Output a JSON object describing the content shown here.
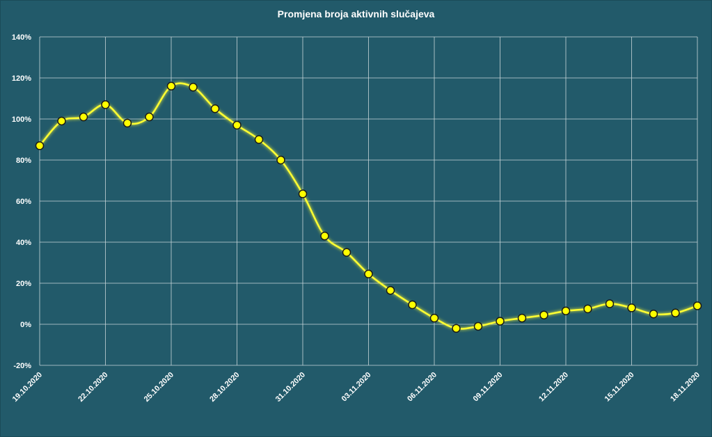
{
  "chart_data": {
    "type": "line",
    "title": "Promjena broja aktivnih slučajeva",
    "xlabel": "",
    "ylabel": "",
    "ylim": [
      -20,
      140
    ],
    "y_tick_values": [
      -20,
      0,
      20,
      40,
      60,
      80,
      100,
      120,
      140
    ],
    "y_tick_labels": [
      "-20%",
      "0%",
      "20%",
      "40%",
      "60%",
      "80%",
      "100%",
      "120%",
      "140%"
    ],
    "x_tick_labels": [
      "19.10.2020",
      "22.10.2020",
      "25.10.2020",
      "28.10.2020",
      "31.10.2020",
      "03.11.2020",
      "06.11.2020",
      "09.11.2020",
      "12.11.2020",
      "15.11.2020",
      "18.11.2020"
    ],
    "x_tick_indices": [
      0,
      3,
      6,
      9,
      12,
      15,
      18,
      21,
      24,
      27,
      30
    ],
    "grid": true,
    "series": [
      {
        "values": [
          87,
          99,
          101,
          107,
          98,
          101,
          116,
          115.5,
          105,
          97,
          90,
          80,
          63.5,
          43,
          35,
          24.5,
          16.5,
          9.5,
          3,
          -2,
          -1,
          1.5,
          3,
          4.5,
          6.5,
          7.5,
          10,
          8,
          5,
          5.5,
          9
        ]
      }
    ],
    "colors": {
      "background": "#225a6a",
      "line": "#ffff33",
      "marker_fill": "#ffff00",
      "marker_stroke": "#1a1a1a",
      "grid": "#c8d6da"
    }
  }
}
